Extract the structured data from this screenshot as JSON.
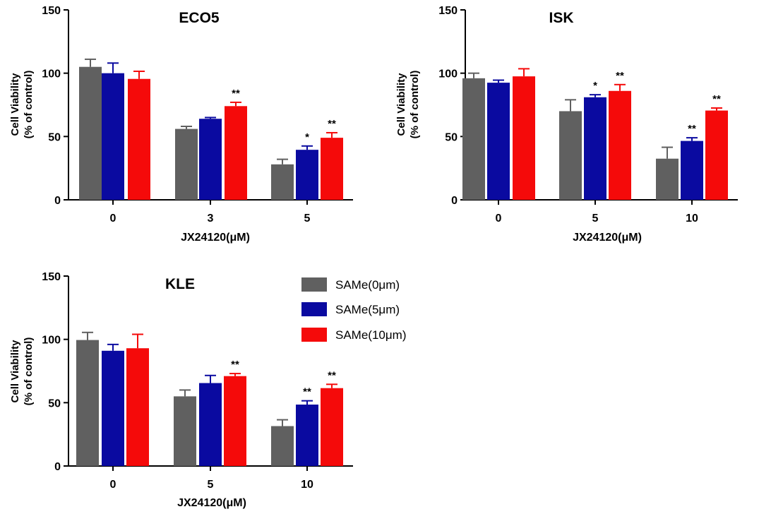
{
  "legend": {
    "entries": [
      {
        "name": "SAMe(0μm)",
        "color": "#606060"
      },
      {
        "name": "SAMe(5μm)",
        "color": "#0a0aa0"
      },
      {
        "name": "SAMe(10μm)",
        "color": "#f50a0a"
      }
    ]
  },
  "chart_data": [
    {
      "type": "bar",
      "title": "ECO5",
      "xlabel": "JX24120(μM)",
      "ylabel_line1": "Cell Viability",
      "ylabel_line2": "(% of control)",
      "ylim": [
        0,
        150
      ],
      "yticks": [
        0,
        50,
        100,
        150
      ],
      "categories": [
        "0",
        "3",
        "5"
      ],
      "series": [
        {
          "name": "SAMe(0μm)",
          "values": [
            105,
            56,
            28
          ],
          "errors": [
            6,
            2,
            4
          ]
        },
        {
          "name": "SAMe(5μm)",
          "values": [
            100,
            64,
            39.5
          ],
          "errors": [
            8,
            1,
            3
          ]
        },
        {
          "name": "SAMe(10μm)",
          "values": [
            95.5,
            74,
            49
          ],
          "errors": [
            6,
            3,
            4
          ]
        }
      ],
      "significance": [
        [
          "",
          "",
          ""
        ],
        [
          "",
          "",
          "*"
        ],
        [
          "",
          "**",
          "**"
        ]
      ]
    },
    {
      "type": "bar",
      "title": "ISK",
      "xlabel": "JX24120(μM)",
      "ylabel_line1": "Cell Viability",
      "ylabel_line2": "(% of control)",
      "ylim": [
        0,
        150
      ],
      "yticks": [
        0,
        50,
        100,
        150
      ],
      "categories": [
        "0",
        "5",
        "10"
      ],
      "series": [
        {
          "name": "SAMe(0μm)",
          "values": [
            96,
            70,
            32.5
          ],
          "errors": [
            4,
            9,
            9
          ]
        },
        {
          "name": "SAMe(5μm)",
          "values": [
            92.5,
            81,
            46.5
          ],
          "errors": [
            2,
            2,
            2.5
          ]
        },
        {
          "name": "SAMe(10μm)",
          "values": [
            97.5,
            86,
            70.5
          ],
          "errors": [
            6,
            5,
            2
          ]
        }
      ],
      "significance": [
        [
          "",
          "",
          ""
        ],
        [
          "",
          "*",
          "**"
        ],
        [
          "",
          "**",
          "**"
        ]
      ]
    },
    {
      "type": "bar",
      "title": "KLE",
      "xlabel": "JX24120(μM)",
      "ylabel_line1": "Cell Viability",
      "ylabel_line2": "(% of control)",
      "ylim": [
        0,
        150
      ],
      "yticks": [
        0,
        50,
        100,
        150
      ],
      "categories": [
        "0",
        "5",
        "10"
      ],
      "series": [
        {
          "name": "SAMe(0μm)",
          "values": [
            99.5,
            55,
            31.5
          ],
          "errors": [
            6,
            5,
            5
          ]
        },
        {
          "name": "SAMe(5μm)",
          "values": [
            91,
            65.5,
            48.5
          ],
          "errors": [
            5,
            6,
            3
          ]
        },
        {
          "name": "SAMe(10μm)",
          "values": [
            93,
            71,
            61.5
          ],
          "errors": [
            11,
            2,
            3
          ]
        }
      ],
      "significance": [
        [
          "",
          "",
          ""
        ],
        [
          "",
          "",
          "**"
        ],
        [
          "",
          "**",
          "**"
        ]
      ]
    }
  ]
}
